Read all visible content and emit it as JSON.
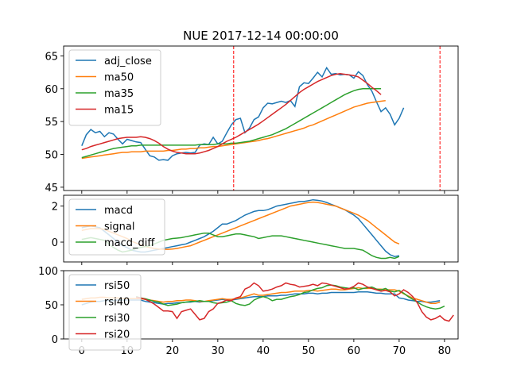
{
  "chart_data": [
    {
      "type": "line",
      "title": "NUE 2017-12-14 00:00:00",
      "xlim": [
        -4,
        83
      ],
      "ylim": [
        44.5,
        66.5
      ],
      "yticks": [
        45,
        50,
        55,
        60,
        65
      ],
      "vlines": [
        33.5,
        79
      ],
      "legend": "top-left",
      "series": [
        {
          "name": "adj_close",
          "color": "#1f77b4",
          "x_start": 0,
          "values": [
            51.3,
            53,
            53.8,
            53.3,
            53.5,
            52.7,
            53.3,
            53.1,
            52.3,
            51.6,
            52.3,
            52.1,
            51.9,
            51.8,
            50.8,
            49.8,
            49.6,
            49.1,
            49.2,
            49.1,
            49.8,
            50.1,
            50.2,
            50.3,
            50.2,
            50.3,
            51.4,
            51.6,
            51.5,
            52.6,
            51.6,
            52,
            53.3,
            54.5,
            55.3,
            55.5,
            53.3,
            54,
            55.3,
            55.7,
            57.1,
            57.8,
            57.7,
            57.9,
            58.1,
            57.9,
            58.2,
            57.3,
            60.3,
            60.9,
            60.8,
            61.6,
            62.5,
            61.8,
            63.2,
            62.2,
            62.3,
            62.1,
            62.2,
            62.1,
            61.6,
            62.6,
            62,
            60.6,
            59.6,
            58,
            56.5,
            57.1,
            56.1,
            54.5,
            55.5,
            57.1
          ]
        },
        {
          "name": "ma50",
          "color": "#ff7f0e",
          "x_start": 0,
          "values": [
            49.4,
            49.5,
            49.6,
            49.7,
            49.8,
            49.9,
            50,
            50.1,
            50.2,
            50.3,
            50.3,
            50.4,
            50.4,
            50.4,
            50.5,
            50.5,
            50.5,
            50.5,
            50.5,
            50.6,
            50.6,
            50.7,
            50.8,
            50.8,
            50.9,
            50.9,
            51,
            51,
            51.1,
            51.2,
            51.2,
            51.3,
            51.4,
            51.5,
            51.6,
            51.7,
            51.8,
            51.9,
            52,
            52.1,
            52.3,
            52.4,
            52.6,
            52.8,
            53,
            53.2,
            53.4,
            53.6,
            53.8,
            54,
            54.3,
            54.5,
            54.8,
            55.1,
            55.4,
            55.7,
            56,
            56.3,
            56.6,
            56.9,
            57.2,
            57.4,
            57.6,
            57.8,
            57.9,
            58,
            58.1,
            58.2
          ]
        },
        {
          "name": "ma35",
          "color": "#2ca02c",
          "x_start": 0,
          "values": [
            49.5,
            49.7,
            49.9,
            50.1,
            50.3,
            50.5,
            50.7,
            50.9,
            51,
            51.1,
            51.2,
            51.3,
            51.3,
            51.4,
            51.4,
            51.4,
            51.4,
            51.4,
            51.4,
            51.4,
            51.4,
            51.4,
            51.4,
            51.4,
            51.4,
            51.4,
            51.5,
            51.5,
            51.5,
            51.5,
            51.6,
            51.6,
            51.6,
            51.7,
            51.7,
            51.8,
            51.9,
            52,
            52.2,
            52.4,
            52.6,
            52.8,
            53,
            53.3,
            53.6,
            53.9,
            54.3,
            54.7,
            55.1,
            55.5,
            55.9,
            56.3,
            56.7,
            57.1,
            57.5,
            57.9,
            58.3,
            58.7,
            59.1,
            59.4,
            59.7,
            59.9,
            60,
            60,
            60,
            60,
            60
          ]
        },
        {
          "name": "ma15",
          "color": "#d62728",
          "x_start": 0,
          "values": [
            50.7,
            50.9,
            51.2,
            51.4,
            51.6,
            51.8,
            52,
            52.2,
            52.4,
            52.5,
            52.6,
            52.6,
            52.6,
            52.7,
            52.6,
            52.4,
            52.1,
            51.7,
            51.2,
            50.8,
            50.5,
            50.3,
            50.2,
            50.1,
            50.1,
            50.1,
            50.2,
            50.4,
            50.6,
            50.9,
            51.2,
            51.6,
            52,
            52.3,
            52.6,
            53,
            53.4,
            53.8,
            54.2,
            54.6,
            55.1,
            55.6,
            56.1,
            56.6,
            57.1,
            57.6,
            58.2,
            58.8,
            59.4,
            59.9,
            60.3,
            60.7,
            61.1,
            61.4,
            61.7,
            62,
            62.2,
            62.3,
            62.2,
            62.1,
            62,
            61.8,
            61.3,
            60.8,
            60.2,
            59.7,
            59.1
          ]
        }
      ]
    },
    {
      "type": "line",
      "xlim": [
        -4,
        83
      ],
      "ylim": [
        -1.1,
        2.6
      ],
      "yticks": [
        0,
        2
      ],
      "legend": "top-left",
      "series": [
        {
          "name": "macd",
          "color": "#1f77b4",
          "x_start": 0,
          "values": [
            0.8,
            0.85,
            0.9,
            0.85,
            0.8,
            0.6,
            0.4,
            0.2,
            0,
            -0.2,
            -0.3,
            -0.45,
            -0.5,
            -0.55,
            -0.55,
            -0.5,
            -0.45,
            -0.4,
            -0.35,
            -0.3,
            -0.25,
            -0.2,
            -0.15,
            -0.1,
            0,
            0.1,
            0.2,
            0.3,
            0.45,
            0.6,
            0.8,
            1,
            1,
            1.1,
            1.2,
            1.35,
            1.5,
            1.6,
            1.7,
            1.75,
            1.75,
            1.8,
            1.9,
            2,
            2.05,
            2.1,
            2.15,
            2.2,
            2.25,
            2.25,
            2.3,
            2.35,
            2.32,
            2.28,
            2.2,
            2.1,
            2,
            1.9,
            1.8,
            1.65,
            1.5,
            1.3,
            1,
            0.7,
            0.4,
            0.1,
            -0.2,
            -0.5,
            -0.7,
            -0.8,
            -0.75
          ]
        },
        {
          "name": "signal",
          "color": "#ff7f0e",
          "x_start": 0,
          "values": [
            0.65,
            0.7,
            0.75,
            0.75,
            0.75,
            0.7,
            0.6,
            0.5,
            0.4,
            0.3,
            0.2,
            0.05,
            -0.05,
            -0.15,
            -0.25,
            -0.3,
            -0.35,
            -0.38,
            -0.4,
            -0.4,
            -0.38,
            -0.35,
            -0.3,
            -0.25,
            -0.2,
            -0.1,
            0,
            0.1,
            0.2,
            0.3,
            0.4,
            0.5,
            0.6,
            0.7,
            0.8,
            0.9,
            1,
            1.1,
            1.2,
            1.3,
            1.4,
            1.5,
            1.6,
            1.7,
            1.8,
            1.9,
            2,
            2.05,
            2.1,
            2.15,
            2.2,
            2.22,
            2.2,
            2.15,
            2.1,
            2.05,
            2,
            1.9,
            1.8,
            1.7,
            1.6,
            1.5,
            1.35,
            1.2,
            1,
            0.8,
            0.6,
            0.4,
            0.2,
            0,
            -0.1
          ]
        },
        {
          "name": "macd_diff",
          "color": "#2ca02c",
          "x_start": 0,
          "values": [
            0.15,
            0.2,
            0.25,
            0.2,
            0.15,
            0.1,
            -0.1,
            -0.3,
            -0.45,
            -0.55,
            -0.5,
            -0.45,
            -0.35,
            -0.3,
            -0.25,
            -0.2,
            -0.1,
            0,
            0.1,
            0.15,
            0.2,
            0.22,
            0.25,
            0.3,
            0.35,
            0.4,
            0.45,
            0.5,
            0.5,
            0.4,
            0.3,
            0.3,
            0.35,
            0.4,
            0.45,
            0.45,
            0.4,
            0.35,
            0.3,
            0.2,
            0.25,
            0.3,
            0.35,
            0.35,
            0.35,
            0.3,
            0.25,
            0.2,
            0.15,
            0.1,
            0.05,
            0,
            -0.05,
            -0.1,
            -0.15,
            -0.2,
            -0.25,
            -0.3,
            -0.35,
            -0.35,
            -0.35,
            -0.4,
            -0.45,
            -0.6,
            -0.75,
            -0.85,
            -0.9,
            -0.9,
            -0.85,
            -0.9,
            -0.8
          ]
        }
      ]
    },
    {
      "type": "line",
      "xlim": [
        -4,
        83
      ],
      "ylim": [
        0,
        100
      ],
      "yticks": [
        0,
        50,
        100
      ],
      "xticks": [
        0,
        10,
        20,
        30,
        40,
        50,
        60,
        70,
        80
      ],
      "legend": "top-left",
      "series": [
        {
          "name": "rsi50",
          "color": "#1f77b4",
          "x_start": 0,
          "values": [
            50,
            52,
            54,
            55,
            55,
            56,
            56,
            56,
            57,
            57,
            57,
            57,
            57,
            57,
            55,
            54,
            53,
            52,
            51,
            52,
            52,
            53,
            53,
            54,
            54,
            55,
            54,
            55,
            55,
            56,
            57,
            58,
            57,
            57,
            58,
            59,
            60,
            61,
            62,
            62,
            62,
            63,
            63,
            63,
            64,
            64,
            65,
            66,
            66,
            66,
            67,
            67,
            66,
            67,
            67,
            68,
            68,
            68,
            68,
            68,
            68,
            69,
            69,
            69,
            68,
            67,
            67,
            66,
            66,
            66,
            60,
            59,
            57,
            56,
            55,
            55,
            54,
            54,
            55,
            56
          ]
        },
        {
          "name": "rsi40",
          "color": "#ff7f0e",
          "x_start": 0,
          "values": [
            58,
            59,
            60,
            60,
            61,
            61,
            60,
            60,
            60,
            59,
            59,
            59,
            59,
            59,
            58,
            57,
            56,
            55,
            54,
            55,
            55,
            56,
            56,
            57,
            57,
            56,
            55,
            55,
            56,
            57,
            58,
            59,
            58,
            58,
            59,
            60,
            62,
            64,
            66,
            64,
            64,
            65,
            66,
            67,
            68,
            68,
            69,
            70,
            70,
            70,
            71,
            71,
            70,
            71,
            72,
            73,
            73,
            72,
            72,
            73,
            74,
            75,
            74,
            74,
            74,
            73,
            73,
            72,
            72,
            72,
            70,
            66,
            63,
            60,
            58,
            56,
            54,
            52,
            52,
            54
          ]
        },
        {
          "name": "rsi30",
          "color": "#2ca02c",
          "x_start": 12,
          "values": [
            62,
            60,
            59,
            57,
            55,
            54,
            51,
            49,
            50,
            51,
            53,
            54,
            55,
            55,
            56,
            55,
            55,
            53,
            52,
            53,
            54,
            56,
            52,
            50,
            49,
            51,
            57,
            60,
            62,
            60,
            56,
            58,
            58,
            60,
            62,
            63,
            65,
            68,
            69,
            72,
            74,
            75,
            78,
            79,
            78,
            76,
            75,
            74,
            75,
            72,
            74,
            75,
            76,
            73,
            72,
            74,
            70,
            69,
            71,
            67,
            62,
            58,
            54,
            50,
            47,
            45,
            44,
            45,
            48
          ]
        },
        {
          "name": "rsi20",
          "color": "#d62728",
          "x_start": 12,
          "values": [
            61,
            60,
            58,
            55,
            51,
            46,
            41,
            41,
            40,
            30,
            40,
            42,
            44,
            36,
            28,
            30,
            40,
            44,
            52,
            54,
            57,
            56,
            60,
            62,
            73,
            76,
            82,
            78,
            70,
            71,
            73,
            76,
            78,
            82,
            80,
            79,
            76,
            77,
            78,
            80,
            78,
            82,
            81,
            79,
            77,
            75,
            73,
            74,
            77,
            82,
            80,
            76,
            74,
            72,
            70,
            71,
            69,
            63,
            66,
            72,
            68,
            62,
            53,
            40,
            32,
            28,
            30,
            34,
            28,
            26,
            35
          ]
        }
      ]
    }
  ]
}
